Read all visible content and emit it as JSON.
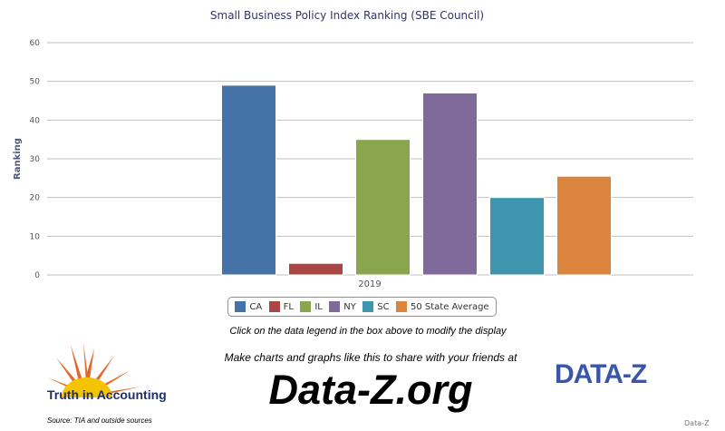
{
  "chart_data": {
    "type": "bar",
    "title": "Small Business Policy Index Ranking (SBE Council)",
    "xlabel": "",
    "ylabel": "Ranking",
    "categories": [
      "2019"
    ],
    "ylim": [
      0,
      60
    ],
    "yticks": [
      0,
      10,
      20,
      30,
      40,
      50,
      60
    ],
    "grid": true,
    "legend_position": "bottom",
    "series": [
      {
        "name": "CA",
        "values": [
          49
        ],
        "color": "#4572a7"
      },
      {
        "name": "FL",
        "values": [
          3
        ],
        "color": "#aa4643"
      },
      {
        "name": "IL",
        "values": [
          35
        ],
        "color": "#89a54e"
      },
      {
        "name": "NY",
        "values": [
          47
        ],
        "color": "#80699b"
      },
      {
        "name": "SC",
        "values": [
          20
        ],
        "color": "#3d96ae"
      },
      {
        "name": "50 State Average",
        "values": [
          25.5
        ],
        "color": "#db843d"
      }
    ]
  },
  "footer": {
    "hint": "Click on the data legend in the box above to modify the display",
    "make_charts": "Make charts and graphs like this to share with your friends at",
    "site": "Data-Z.org",
    "tia_name": "Truth in Accounting",
    "source": "Source: TIA and outside sources",
    "dz_logo": "DATA-Z",
    "credit": "Data-Z"
  }
}
